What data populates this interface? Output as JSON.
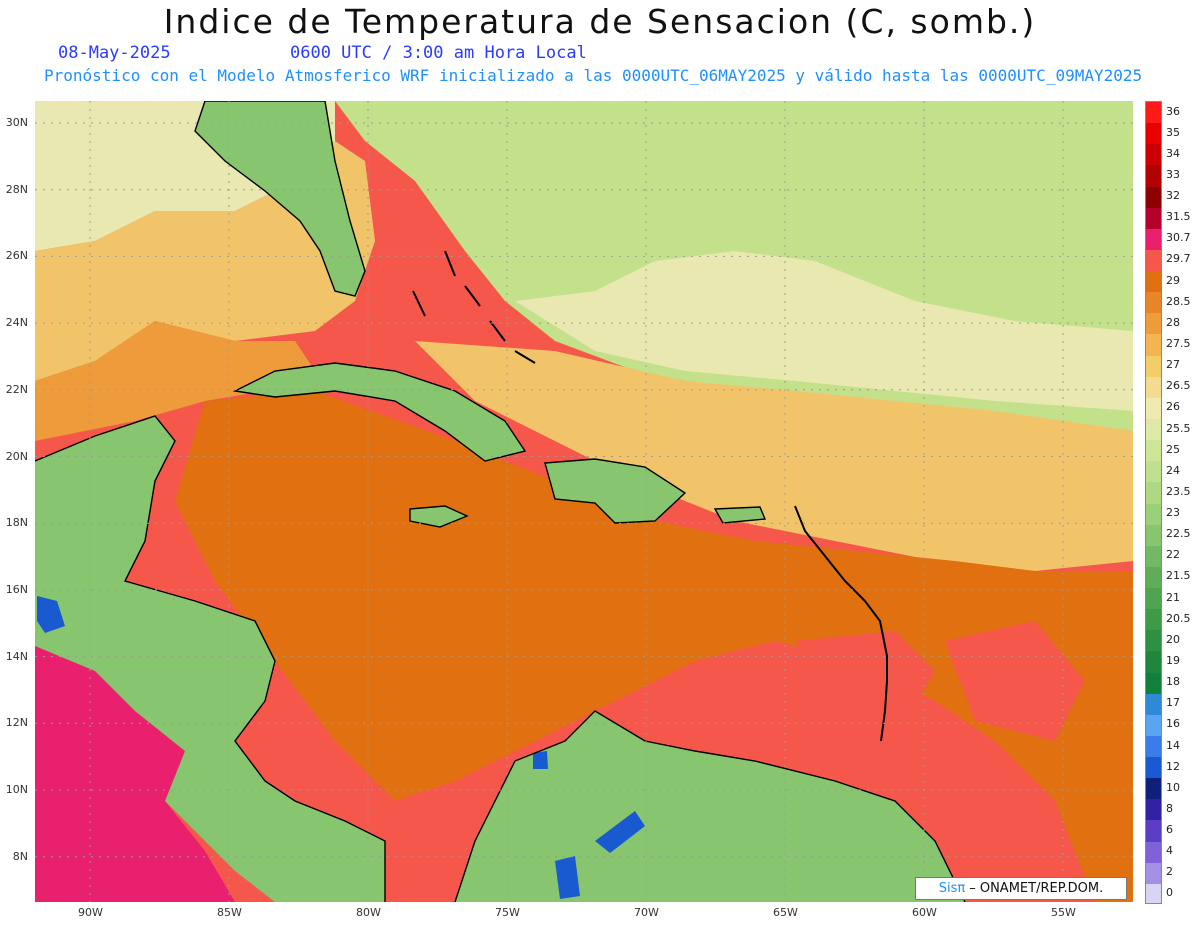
{
  "title": "Indice de Temperatura de Sensacion (C, somb.)",
  "date": "08-May-2025",
  "time": "0600 UTC / 3:00 am Hora Local",
  "forecast_info": "Pronóstico con el Modelo Atmosferico WRF inicializado a las 0000UTC_06MAY2025 y válido hasta las  0000UTC_09MAY2025",
  "lat_labels": [
    "30N",
    "28N",
    "26N",
    "24N",
    "22N",
    "20N",
    "18N",
    "16N",
    "14N",
    "12N",
    "10N",
    "8N"
  ],
  "lon_labels": [
    "90W",
    "85W",
    "80W",
    "75W",
    "70W",
    "65W",
    "60W",
    "55W"
  ],
  "colorbar": {
    "labels": [
      "36",
      "35",
      "34",
      "33",
      "32",
      "31.5",
      "30.7",
      "29.7",
      "29",
      "28.5",
      "28",
      "27.5",
      "27",
      "26.5",
      "26",
      "25.5",
      "25",
      "24",
      "23.5",
      "23",
      "22.5",
      "22",
      "21.5",
      "21",
      "20.5",
      "20",
      "19",
      "18",
      "17",
      "16",
      "14",
      "12",
      "10",
      "8",
      "6",
      "4",
      "2",
      "0"
    ],
    "colors": [
      "#ff1a1a",
      "#e60000",
      "#cc0000",
      "#b30000",
      "#8b0000",
      "#b3002d",
      "#e8206e",
      "#f5574a",
      "#e07010",
      "#e8852a",
      "#ee9b3c",
      "#f2b550",
      "#f5cc6a",
      "#f3dc8f",
      "#eeeab2",
      "#dde9a4",
      "#cce596",
      "#bfe08c",
      "#aed882",
      "#9ccf79",
      "#88c56f",
      "#72b963",
      "#5fad58",
      "#4ea44f",
      "#3d9a48",
      "#2d9144",
      "#1f873d",
      "#10803a",
      "#2e8ad6",
      "#5aa5f0",
      "#3a7ce8",
      "#1a5ad0",
      "#101f7a",
      "#3222a3",
      "#5b3ec4",
      "#7f63d6",
      "#a38fe4",
      "#d8d4f4"
    ]
  },
  "credit": {
    "sis": "Sisπ",
    "org": "– ONAMET/REP.DOM."
  },
  "map_colors": {
    "ocean_hot": "#f5574a",
    "ocean_warm": "#e07010",
    "ocean_mid": "#ee9b3c",
    "ocean_mild": "#f2c46a",
    "north_pale": "#e8e8b0",
    "north_green": "#c3e08a",
    "land_green": "#88c56f",
    "dark_green": "#1f873d",
    "pacific_pink": "#e8206e",
    "cold_blue": "#1a5ad0",
    "coast_line": "#000000",
    "grid_line": "#9a9a9a"
  }
}
